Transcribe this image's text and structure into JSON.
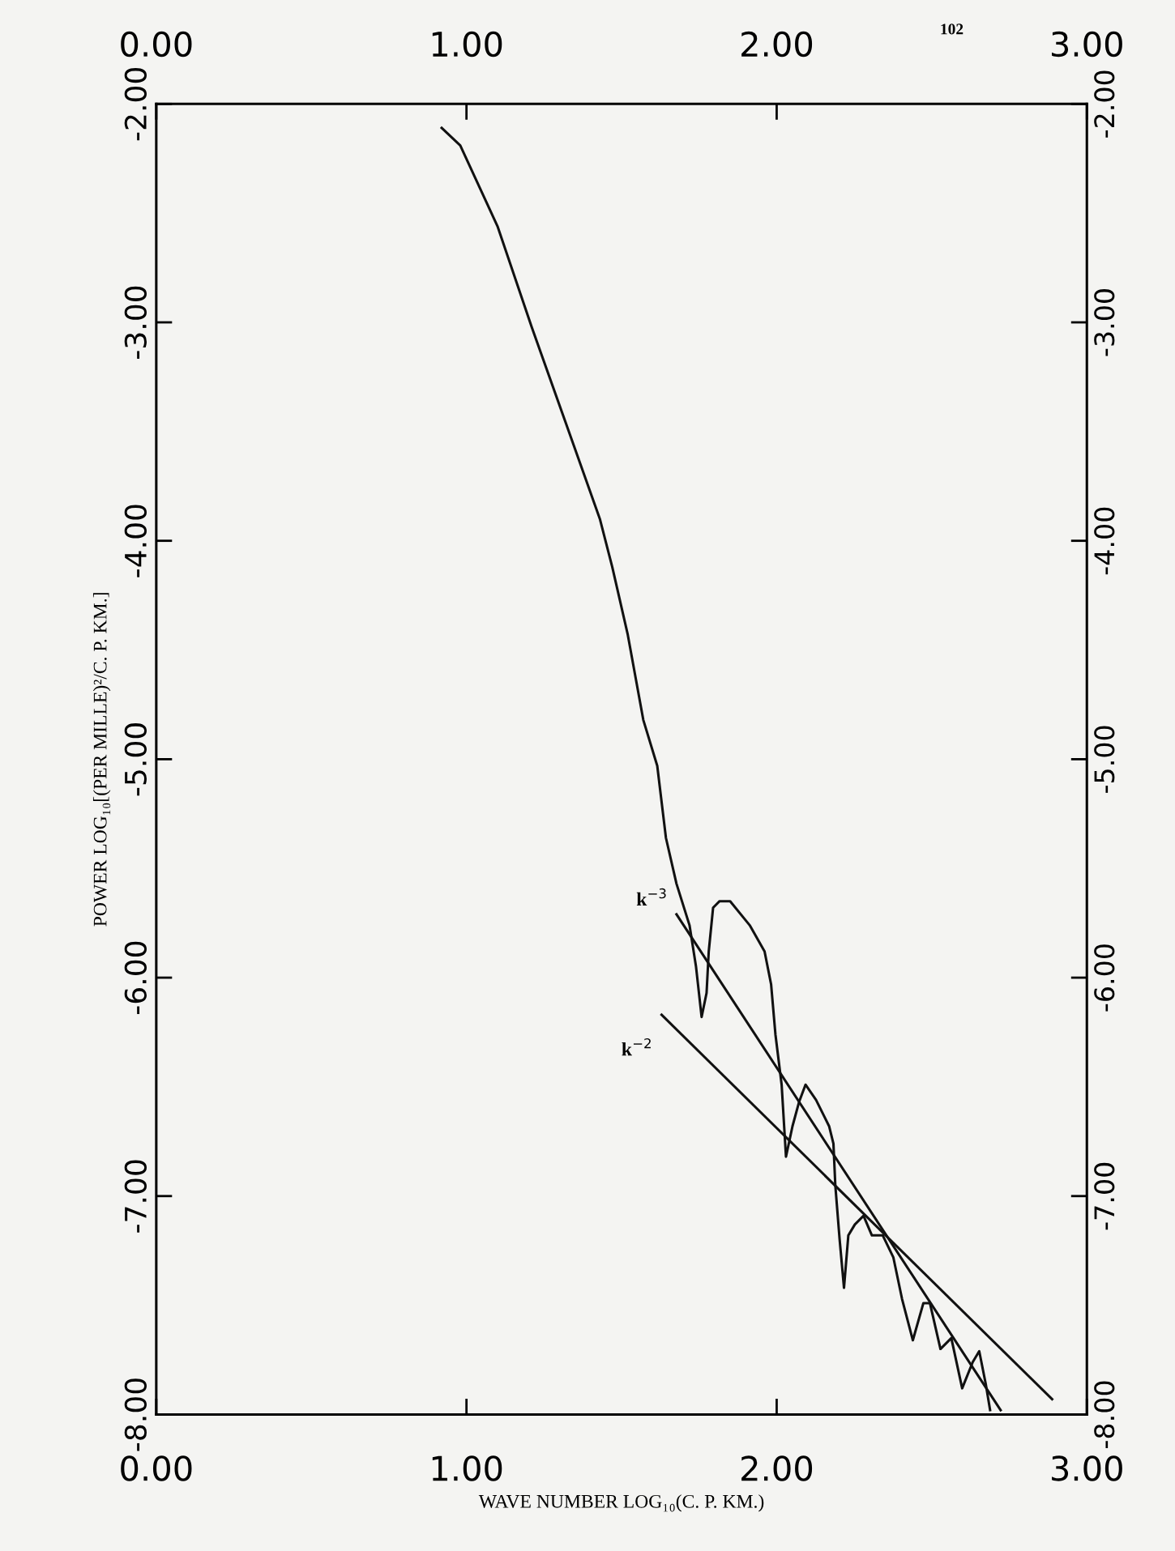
{
  "chart_data": {
    "type": "line",
    "xlabel": "WAVE NUMBER LOG₁₀(C. P. KM.)",
    "ylabel": "POWER LOG₁₀[(PER MILLE)²/C. P. KM.]",
    "annotations": [
      "k$^{−3}$",
      "k$^{−2}$",
      "102"
    ],
    "series": [
      {
        "color": "#111111",
        "x": [
          0.92,
          0.98,
          1.1,
          1.21,
          1.32,
          1.43,
          1.47,
          1.52,
          1.57,
          1.615,
          1.643,
          1.677,
          1.719,
          1.74,
          1.758,
          1.774,
          1.781,
          1.795,
          1.816,
          1.85,
          1.913,
          1.961,
          1.982,
          1.996,
          2.016,
          2.03,
          2.051,
          2.072,
          2.093,
          2.127,
          2.169,
          2.183,
          2.189,
          2.203,
          2.217,
          2.231,
          2.252,
          2.28,
          2.307,
          2.342,
          2.376,
          2.404,
          2.439,
          2.473,
          2.494,
          2.528,
          2.563,
          2.598,
          2.632,
          2.653,
          2.674,
          2.688
        ],
        "values": [
          -2.11,
          -2.19,
          -2.56,
          -3.02,
          -3.46,
          -3.9,
          -4.12,
          -4.43,
          -4.82,
          -5.03,
          -5.36,
          -5.57,
          -5.76,
          -5.95,
          -6.18,
          -6.07,
          -5.88,
          -5.68,
          -5.65,
          -5.65,
          -5.76,
          -5.88,
          -6.03,
          -6.26,
          -6.49,
          -6.82,
          -6.68,
          -6.57,
          -6.49,
          -6.56,
          -6.68,
          -6.76,
          -6.95,
          -7.2,
          -7.42,
          -7.18,
          -7.13,
          -7.09,
          -7.18,
          -7.18,
          -7.28,
          -7.47,
          -7.66,
          -7.49,
          -7.49,
          -7.7,
          -7.65,
          -7.88,
          -7.76,
          -7.71,
          -7.86,
          -7.98
        ]
      },
      {
        "color": "#111111",
        "x": [
          1.677,
          2.722
        ],
        "values": [
          -5.71,
          -7.98
        ]
      },
      {
        "color": "#111111",
        "x": [
          1.629,
          2.888
        ],
        "values": [
          -6.17,
          -7.93
        ]
      }
    ],
    "xlim": [
      0,
      3
    ],
    "ylim": [
      -8,
      -2
    ],
    "xticks": [
      {
        "value": 0,
        "label": "0.00"
      },
      {
        "value": 1,
        "label": "1.00"
      },
      {
        "value": 2,
        "label": "2.00"
      },
      {
        "value": 3,
        "label": "3.00"
      }
    ],
    "yticks": [
      {
        "value": -2,
        "label": "-2.00"
      },
      {
        "value": -3,
        "label": "-3.00"
      },
      {
        "value": -4,
        "label": "-4.00"
      },
      {
        "value": -5,
        "label": "-5.00"
      },
      {
        "value": -6,
        "label": "-6.00"
      },
      {
        "value": -7,
        "label": "-7.00"
      },
      {
        "value": -8,
        "label": "-8.00"
      }
    ],
    "x2lim": [
      0,
      3
    ],
    "x2ticks": [
      {
        "value": 0,
        "label": "0.00"
      },
      {
        "value": 1,
        "label": "1.00"
      },
      {
        "value": 2,
        "label": "2.00"
      },
      {
        "value": 3,
        "label": "3.00"
      }
    ],
    "y2lim": [
      -8,
      -2
    ],
    "y2ticks": [
      {
        "value": -2,
        "label": "-2.00"
      },
      {
        "value": -3,
        "label": "-3.00"
      },
      {
        "value": -4,
        "label": "-4.00"
      },
      {
        "value": -5,
        "label": "-5.00"
      },
      {
        "value": -6,
        "label": "-6.00"
      },
      {
        "value": -7,
        "label": "-7.00"
      },
      {
        "value": -8,
        "label": "-8.00"
      }
    ],
    "grid": false,
    "legend": false,
    "marker": "none",
    "line_style": "solid"
  }
}
